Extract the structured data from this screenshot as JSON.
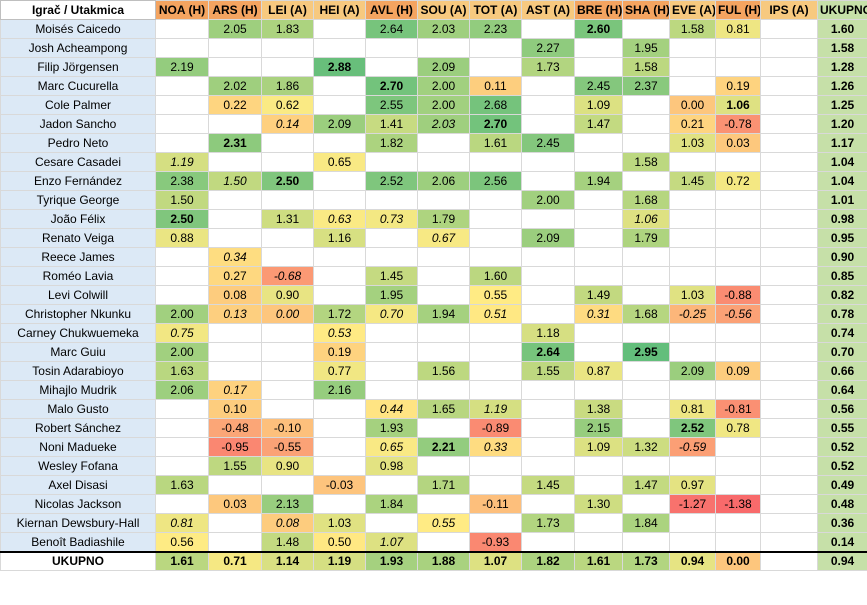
{
  "header": {
    "corner": "Igrač / Utakmica",
    "matches": [
      {
        "label": "NOA (H)",
        "venue": "H"
      },
      {
        "label": "ARS (H)",
        "venue": "H"
      },
      {
        "label": "LEI (A)",
        "venue": "A"
      },
      {
        "label": "HEI (A)",
        "venue": "A"
      },
      {
        "label": "AVL (H)",
        "venue": "H"
      },
      {
        "label": "SOU (A)",
        "venue": "A"
      },
      {
        "label": "TOT (A)",
        "venue": "A"
      },
      {
        "label": "AST (A)",
        "venue": "A"
      },
      {
        "label": "BRE (H)",
        "venue": "H"
      },
      {
        "label": "SHA (H)",
        "venue": "H"
      },
      {
        "label": "EVE (A)",
        "venue": "A"
      },
      {
        "label": "FUL (H)",
        "venue": "H"
      },
      {
        "label": "IPS (A)",
        "venue": "A"
      }
    ],
    "total": "UKUPNO"
  },
  "rows": [
    {
      "name": "Moisés Caicedo",
      "total": "1.60",
      "cells": [
        "",
        "2.05",
        "1.83",
        "",
        "2.64",
        "2.03",
        "2.23",
        "",
        "*2.60",
        "",
        "1.58",
        "0.81",
        ""
      ]
    },
    {
      "name": "Josh Acheampong",
      "total": "1.58",
      "cells": [
        "",
        "",
        "",
        "",
        "",
        "",
        "",
        "2.27",
        "",
        "1.95",
        "",
        "",
        ""
      ]
    },
    {
      "name": "Filip Jörgensen",
      "total": "1.28",
      "cells": [
        "2.19",
        "",
        "",
        "*2.88",
        "",
        "2.09",
        "",
        "1.73",
        "",
        "1.58",
        "",
        "",
        ""
      ]
    },
    {
      "name": "Marc Cucurella",
      "total": "1.26",
      "cells": [
        "",
        "2.02",
        "1.86",
        "",
        "*2.70",
        "2.00",
        "0.11",
        "",
        "2.45",
        "2.37",
        "",
        "0.19",
        ""
      ]
    },
    {
      "name": "Cole Palmer",
      "total": "1.25",
      "cells": [
        "",
        "0.22",
        "0.62",
        "",
        "2.55",
        "2.00",
        "2.68",
        "",
        "1.09",
        "",
        "0.00",
        "*1.06",
        ""
      ]
    },
    {
      "name": "Jadon Sancho",
      "total": "1.20",
      "cells": [
        "",
        "",
        "_0.14",
        "2.09",
        "1.41",
        "_2.03",
        "*2.70",
        "",
        "1.47",
        "",
        "0.21",
        "-0.78",
        ""
      ]
    },
    {
      "name": "Pedro Neto",
      "total": "1.17",
      "cells": [
        "",
        "*2.31",
        "",
        "",
        "1.82",
        "",
        "1.61",
        "2.45",
        "",
        "",
        "1.03",
        "0.03",
        ""
      ]
    },
    {
      "name": "Cesare Casadei",
      "total": "1.04",
      "cells": [
        "_1.19",
        "",
        "",
        "0.65",
        "",
        "",
        "",
        "",
        "",
        "1.58",
        "",
        "",
        ""
      ]
    },
    {
      "name": "Enzo Fernández",
      "total": "1.04",
      "cells": [
        "2.38",
        "_1.50",
        "*2.50",
        "",
        "2.52",
        "2.06",
        "2.56",
        "",
        "1.94",
        "",
        "1.45",
        "0.72",
        ""
      ]
    },
    {
      "name": "Tyrique George",
      "total": "1.01",
      "cells": [
        "1.50",
        "",
        "",
        "",
        "",
        "",
        "",
        "2.00",
        "",
        "1.68",
        "",
        "",
        ""
      ]
    },
    {
      "name": "João Félix",
      "total": "0.98",
      "cells": [
        "*2.50",
        "",
        "1.31",
        "_0.63",
        "_0.73",
        "1.79",
        "",
        "",
        "",
        "_1.06",
        "",
        "",
        ""
      ]
    },
    {
      "name": "Renato Veiga",
      "total": "0.95",
      "cells": [
        "0.88",
        "",
        "",
        "1.16",
        "",
        "_0.67",
        "",
        "2.09",
        "",
        "1.79",
        "",
        "",
        ""
      ]
    },
    {
      "name": "Reece James",
      "total": "0.90",
      "cells": [
        "",
        "_0.34",
        "",
        "",
        "",
        "",
        "",
        "",
        "",
        "",
        "",
        "",
        ""
      ]
    },
    {
      "name": "Roméo Lavia",
      "total": "0.85",
      "cells": [
        "",
        "0.27",
        "_-0.68",
        "",
        "1.45",
        "",
        "1.60",
        "",
        "",
        "",
        "",
        "",
        ""
      ]
    },
    {
      "name": "Levi Colwill",
      "total": "0.82",
      "cells": [
        "",
        "0.08",
        "0.90",
        "",
        "1.95",
        "",
        "0.55",
        "",
        "1.49",
        "",
        "1.03",
        "-0.88",
        ""
      ]
    },
    {
      "name": "Christopher Nkunku",
      "total": "0.78",
      "cells": [
        "2.00",
        "_0.13",
        "_0.00",
        "1.72",
        "_0.70",
        "1.94",
        "_0.51",
        "",
        "_0.31",
        "1.68",
        "_-0.25",
        "_-0.56",
        ""
      ]
    },
    {
      "name": "Carney Chukwuemeka",
      "total": "0.74",
      "cells": [
        "_0.75",
        "",
        "",
        "_0.53",
        "",
        "",
        "",
        "1.18",
        "",
        "",
        "",
        "",
        ""
      ]
    },
    {
      "name": "Marc Guiu",
      "total": "0.70",
      "cells": [
        "2.00",
        "",
        "",
        "0.19",
        "",
        "",
        "",
        "*2.64",
        "",
        "*2.95",
        "",
        "",
        ""
      ]
    },
    {
      "name": "Tosin Adarabioyo",
      "total": "0.66",
      "cells": [
        "1.63",
        "",
        "",
        "0.77",
        "",
        "1.56",
        "",
        "1.55",
        "0.87",
        "",
        "2.09",
        "0.09",
        ""
      ]
    },
    {
      "name": "Mihajlo Mudrik",
      "total": "0.64",
      "cells": [
        "2.06",
        "_0.17",
        "",
        "2.16",
        "",
        "",
        "",
        "",
        "",
        "",
        "",
        "",
        ""
      ]
    },
    {
      "name": "Malo Gusto",
      "total": "0.56",
      "cells": [
        "",
        "0.10",
        "",
        "",
        "_0.44",
        "1.65",
        "_1.19",
        "",
        "1.38",
        "",
        "0.81",
        "-0.81",
        ""
      ]
    },
    {
      "name": "Robert Sánchez",
      "total": "0.55",
      "cells": [
        "",
        "-0.48",
        "-0.10",
        "",
        "1.93",
        "",
        "-0.89",
        "",
        "2.15",
        "",
        "*2.52",
        "0.78",
        ""
      ]
    },
    {
      "name": "Noni Madueke",
      "total": "0.52",
      "cells": [
        "",
        "-0.95",
        "-0.55",
        "",
        "_0.65",
        "*2.21",
        "_0.33",
        "",
        "1.09",
        "1.32",
        "_-0.59",
        "",
        ""
      ]
    },
    {
      "name": "Wesley Fofana",
      "total": "0.52",
      "cells": [
        "",
        "1.55",
        "0.90",
        "",
        "0.98",
        "",
        "",
        "",
        "",
        "",
        "",
        "",
        ""
      ]
    },
    {
      "name": "Axel Disasi",
      "total": "0.49",
      "cells": [
        "1.63",
        "",
        "",
        "-0.03",
        "",
        "1.71",
        "",
        "1.45",
        "",
        "1.47",
        "0.97",
        "",
        ""
      ]
    },
    {
      "name": "Nicolas Jackson",
      "total": "0.48",
      "cells": [
        "",
        "0.03",
        "2.13",
        "",
        "1.84",
        "",
        "-0.11",
        "",
        "1.30",
        "",
        "-1.27",
        "-1.38",
        ""
      ]
    },
    {
      "name": "Kiernan Dewsbury-Hall",
      "total": "0.36",
      "cells": [
        "_0.81",
        "",
        "_0.08",
        "1.03",
        "",
        "_0.55",
        "",
        "1.73",
        "",
        "1.84",
        "",
        "",
        ""
      ]
    },
    {
      "name": "Benoît Badiashile",
      "total": "0.14",
      "cells": [
        "0.56",
        "",
        "1.48",
        "0.50",
        "_1.07",
        "",
        "-0.93",
        "",
        "",
        "",
        "",
        "",
        ""
      ]
    }
  ],
  "summary": {
    "label": "UKUPNO",
    "cells": [
      "1.61",
      "0.71",
      "1.14",
      "1.19",
      "1.93",
      "1.88",
      "1.07",
      "1.82",
      "1.61",
      "1.73",
      "0.94",
      "0.00",
      ""
    ],
    "total": "0.94"
  },
  "colors": {
    "header_home": "#f4a460",
    "header_away": "#f7c97f",
    "name_bg": "#dce9f6",
    "total_bg": "#c6e0a8",
    "scale_low": "#f8696b",
    "scale_mid": "#ffeb84",
    "scale_high": "#63be7b"
  }
}
